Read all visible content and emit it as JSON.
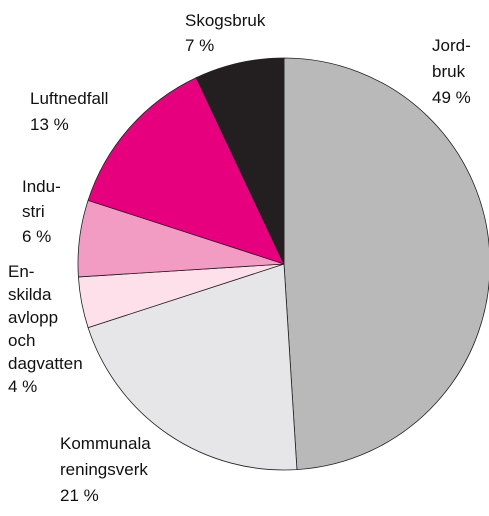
{
  "chart_data": {
    "type": "pie",
    "categories": [
      "Jord-\nbruk",
      "Kommunala\nreningsverk",
      "En-\nskilda\navlopp\noch\ndagvatten",
      "Indu-\nstri",
      "Luftnedfall",
      "Skogsbruk"
    ],
    "values": [
      49,
      21,
      4,
      6,
      13,
      7
    ],
    "value_labels": [
      "49 %",
      "21 %",
      "4 %",
      "6 %",
      "13 %",
      "7 %"
    ],
    "colors": [
      "#b9b9ba",
      "#e6e6e8",
      "#fde0ea",
      "#f39cc3",
      "#e6007e",
      "#231f20"
    ]
  }
}
